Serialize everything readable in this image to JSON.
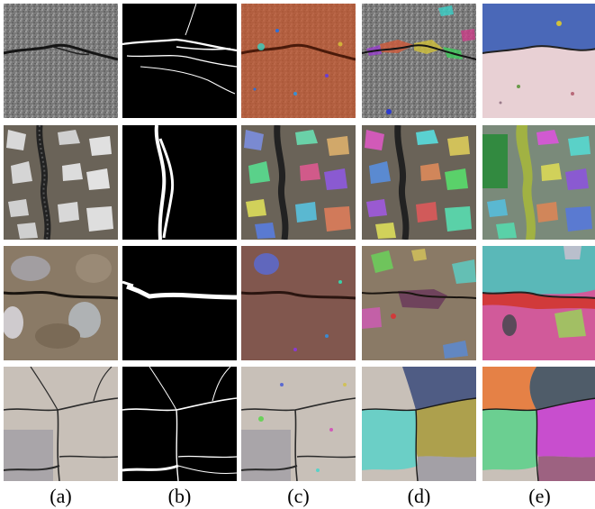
{
  "figure": {
    "column_labels": [
      "(a)",
      "(b)",
      "(c)",
      "(d)",
      "(e)"
    ]
  },
  "columns": [
    {
      "id": "a",
      "content": "crack-photo"
    },
    {
      "id": "b",
      "content": "binary-crack-mask"
    },
    {
      "id": "c",
      "content": "segmentation-overlay"
    },
    {
      "id": "d",
      "content": "segmentation-overlay"
    },
    {
      "id": "e",
      "content": "segmentation-overlay"
    }
  ],
  "rows": [
    {
      "id": 1,
      "surface": "gray asphalt with horizontal crack"
    },
    {
      "id": 2,
      "surface": "terrazzo/stone aggregate with vertical crack"
    },
    {
      "id": 3,
      "surface": "brown stone with horizontal crack"
    },
    {
      "id": 4,
      "surface": "light concrete with branching crack network"
    }
  ],
  "colors": {
    "background": "#ffffff",
    "mask_bg": "#000000",
    "mask_crack": "#ffffff"
  }
}
